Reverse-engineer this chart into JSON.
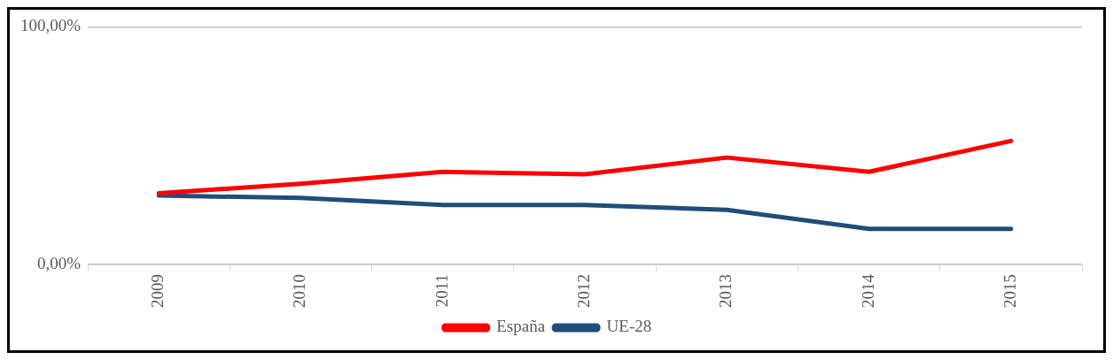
{
  "chart_data": {
    "type": "line",
    "categories": [
      "2009",
      "2010",
      "2011",
      "2012",
      "2013",
      "2014",
      "2015"
    ],
    "series": [
      {
        "name": "España",
        "color": "#ff0000",
        "values": [
          30,
          34,
          39,
          38,
          45,
          39,
          52
        ]
      },
      {
        "name": "UE-28",
        "color": "#1f4e79",
        "values": [
          29,
          28,
          25,
          25,
          23,
          15,
          15
        ]
      }
    ],
    "ylim": [
      0,
      100
    ],
    "yticks": [
      {
        "value": 0,
        "label": "0,00%"
      },
      {
        "value": 100,
        "label": "100,00%"
      }
    ],
    "grid": "y",
    "legend": "bottom",
    "marker": "none",
    "line_style": "solid"
  }
}
